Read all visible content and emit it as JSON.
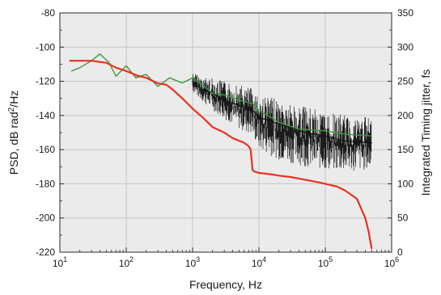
{
  "chart_data": {
    "type": "line",
    "title": "",
    "xlabel": "Frequency, Hz",
    "ylabel_left_text": "PSD, dB rad",
    "ylabel_left_sup": "2",
    "ylabel_left_tail": "/Hz",
    "ylabel_right": "Integrated Timing jitter, fs",
    "x_scale": "log",
    "xlim": [
      10,
      1000000
    ],
    "ylim_left": [
      -220,
      -80
    ],
    "ylim_right": [
      0,
      350
    ],
    "grid": true,
    "legend": "none",
    "x_tick_labels": [
      {
        "base": "10",
        "exp": "1"
      },
      {
        "base": "10",
        "exp": "2"
      },
      {
        "base": "10",
        "exp": "3"
      },
      {
        "base": "10",
        "exp": "4"
      },
      {
        "base": "10",
        "exp": "5"
      },
      {
        "base": "10",
        "exp": "6"
      }
    ],
    "y_left_ticks": [
      "-80",
      "-100",
      "-120",
      "-140",
      "-160",
      "-180",
      "-200",
      "-220"
    ],
    "y_right_ticks": [
      "350",
      "300",
      "250",
      "200",
      "150",
      "100",
      "50",
      "0"
    ],
    "colors": {
      "background": "#ebebeb",
      "grid": "#c4c4c4",
      "psd_black": "#111111",
      "psd_green": "#3c9a3c",
      "jitter_red": "#e8321f"
    },
    "series": [
      {
        "axis": "left",
        "color": "black",
        "points": [
          [
            1000,
            -120
          ],
          [
            1300,
            -124
          ],
          [
            2000,
            -127
          ],
          [
            3000,
            -131
          ],
          [
            5000,
            -134
          ],
          [
            8000,
            -137
          ],
          [
            10000,
            -141
          ],
          [
            20000,
            -145
          ],
          [
            50000,
            -150
          ],
          [
            100000,
            -152
          ],
          [
            200000,
            -155
          ],
          [
            500000,
            -156
          ]
        ],
        "band_low": [
          [
            1000,
            -126
          ],
          [
            1300,
            -131
          ],
          [
            2000,
            -137
          ],
          [
            3000,
            -142
          ],
          [
            5000,
            -148
          ],
          [
            8000,
            -152
          ],
          [
            10000,
            -160
          ],
          [
            20000,
            -166
          ],
          [
            50000,
            -170
          ],
          [
            100000,
            -172
          ],
          [
            200000,
            -173
          ],
          [
            500000,
            -172
          ]
        ],
        "band_high": [
          [
            1000,
            -114
          ],
          [
            1300,
            -117
          ],
          [
            2000,
            -118
          ],
          [
            3000,
            -120
          ],
          [
            5000,
            -122
          ],
          [
            8000,
            -124
          ],
          [
            10000,
            -127
          ],
          [
            20000,
            -131
          ],
          [
            50000,
            -135
          ],
          [
            100000,
            -138
          ],
          [
            200000,
            -140
          ],
          [
            500000,
            -141
          ]
        ]
      },
      {
        "axis": "left",
        "color": "green",
        "points": [
          [
            15,
            -114
          ],
          [
            20,
            -112
          ],
          [
            30,
            -108
          ],
          [
            40,
            -104
          ],
          [
            55,
            -109
          ],
          [
            70,
            -117
          ],
          [
            100,
            -111
          ],
          [
            140,
            -118
          ],
          [
            200,
            -116
          ],
          [
            300,
            -123
          ],
          [
            450,
            -118
          ],
          [
            700,
            -121
          ],
          [
            1000,
            -118
          ],
          [
            1500,
            -123
          ],
          [
            2000,
            -127
          ],
          [
            3000,
            -128
          ],
          [
            5000,
            -131
          ],
          [
            8000,
            -133
          ],
          [
            10000,
            -137
          ],
          [
            20000,
            -144
          ],
          [
            40000,
            -148
          ],
          [
            100000,
            -149
          ],
          [
            200000,
            -151
          ],
          [
            500000,
            -152
          ]
        ]
      },
      {
        "axis": "right",
        "color": "red",
        "points": [
          [
            14,
            280
          ],
          [
            20,
            280
          ],
          [
            30,
            280
          ],
          [
            50,
            277
          ],
          [
            70,
            270
          ],
          [
            100,
            265
          ],
          [
            150,
            258
          ],
          [
            200,
            255
          ],
          [
            300,
            247
          ],
          [
            400,
            245
          ],
          [
            500,
            238
          ],
          [
            700,
            225
          ],
          [
            1000,
            210
          ],
          [
            1500,
            195
          ],
          [
            2000,
            183
          ],
          [
            3000,
            175
          ],
          [
            4000,
            167
          ],
          [
            5000,
            163
          ],
          [
            6000,
            160
          ],
          [
            7000,
            155
          ],
          [
            7500,
            150
          ],
          [
            8000,
            120
          ],
          [
            8500,
            118
          ],
          [
            10000,
            116
          ],
          [
            15000,
            114
          ],
          [
            20000,
            112
          ],
          [
            30000,
            110
          ],
          [
            50000,
            106
          ],
          [
            80000,
            102
          ],
          [
            100000,
            100
          ],
          [
            150000,
            96
          ],
          [
            200000,
            90
          ],
          [
            300000,
            78
          ],
          [
            400000,
            50
          ],
          [
            450000,
            30
          ],
          [
            500000,
            5
          ]
        ]
      }
    ]
  }
}
